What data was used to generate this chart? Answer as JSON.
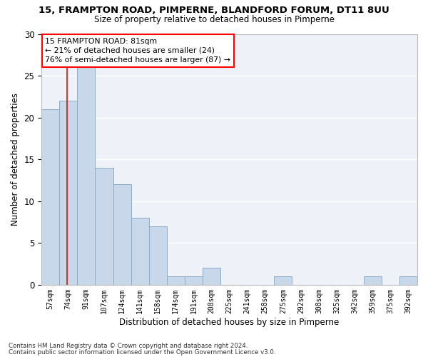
{
  "title": "15, FRAMPTON ROAD, PIMPERNE, BLANDFORD FORUM, DT11 8UU",
  "subtitle": "Size of property relative to detached houses in Pimperne",
  "xlabel": "Distribution of detached houses by size in Pimperne",
  "ylabel": "Number of detached properties",
  "categories": [
    "57sqm",
    "74sqm",
    "91sqm",
    "107sqm",
    "124sqm",
    "141sqm",
    "158sqm",
    "174sqm",
    "191sqm",
    "208sqm",
    "225sqm",
    "241sqm",
    "258sqm",
    "275sqm",
    "292sqm",
    "308sqm",
    "325sqm",
    "342sqm",
    "359sqm",
    "375sqm",
    "392sqm"
  ],
  "values": [
    21,
    22,
    26,
    14,
    12,
    8,
    7,
    1,
    1,
    2,
    0,
    0,
    0,
    1,
    0,
    0,
    0,
    0,
    1,
    0,
    1
  ],
  "bar_color": "#c8d8ea",
  "bar_edge_color": "#8aaec8",
  "property_line_x": 1.42,
  "annotation_text": "15 FRAMPTON ROAD: 81sqm\n← 21% of detached houses are smaller (24)\n76% of semi-detached houses are larger (87) →",
  "annotation_box_color": "white",
  "annotation_box_edge_color": "red",
  "vline_color": "red",
  "ylim": [
    0,
    30
  ],
  "yticks": [
    0,
    5,
    10,
    15,
    20,
    25,
    30
  ],
  "background_color": "#eef2f8",
  "grid_color": "white",
  "footer_line1": "Contains HM Land Registry data © Crown copyright and database right 2024.",
  "footer_line2": "Contains public sector information licensed under the Open Government Licence v3.0."
}
